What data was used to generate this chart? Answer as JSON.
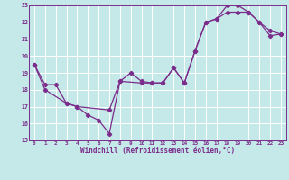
{
  "background_color": "#c5e8e8",
  "grid_color": "#ffffff",
  "line_color": "#7b2d8b",
  "x_label": "Windchill (Refroidissement éolien,°C)",
  "xlim": [
    -0.5,
    23.5
  ],
  "ylim": [
    15,
    23
  ],
  "y_ticks": [
    15,
    16,
    17,
    18,
    19,
    20,
    21,
    22,
    23
  ],
  "x_ticks": [
    0,
    1,
    2,
    3,
    4,
    5,
    6,
    7,
    8,
    9,
    10,
    11,
    12,
    13,
    14,
    15,
    16,
    17,
    18,
    19,
    20,
    21,
    22,
    23
  ],
  "line1_x": [
    0,
    1,
    2,
    3,
    4,
    5,
    6,
    7,
    8,
    9,
    10,
    11,
    12,
    13,
    14,
    15,
    16,
    17,
    18,
    19,
    20,
    21,
    22,
    23
  ],
  "line1_y": [
    19.5,
    18.3,
    18.3,
    17.2,
    17.0,
    16.5,
    16.2,
    15.4,
    18.5,
    19.0,
    18.5,
    18.4,
    18.4,
    19.3,
    18.4,
    20.3,
    22.0,
    22.2,
    23.0,
    23.0,
    22.6,
    22.0,
    21.2,
    21.3
  ],
  "line2_x": [
    0,
    1,
    3,
    4,
    7,
    8,
    10,
    11,
    12,
    13,
    14,
    15,
    16,
    17,
    18,
    19,
    20,
    21,
    22,
    23
  ],
  "line2_y": [
    19.5,
    18.0,
    17.2,
    17.0,
    16.8,
    18.5,
    18.4,
    18.4,
    18.4,
    19.3,
    18.4,
    20.3,
    22.0,
    22.2,
    22.6,
    22.6,
    22.6,
    22.0,
    21.5,
    21.3
  ],
  "marker_size": 2.2,
  "linewidth": 0.9,
  "tick_fontsize": 4.3,
  "label_fontsize": 5.5
}
